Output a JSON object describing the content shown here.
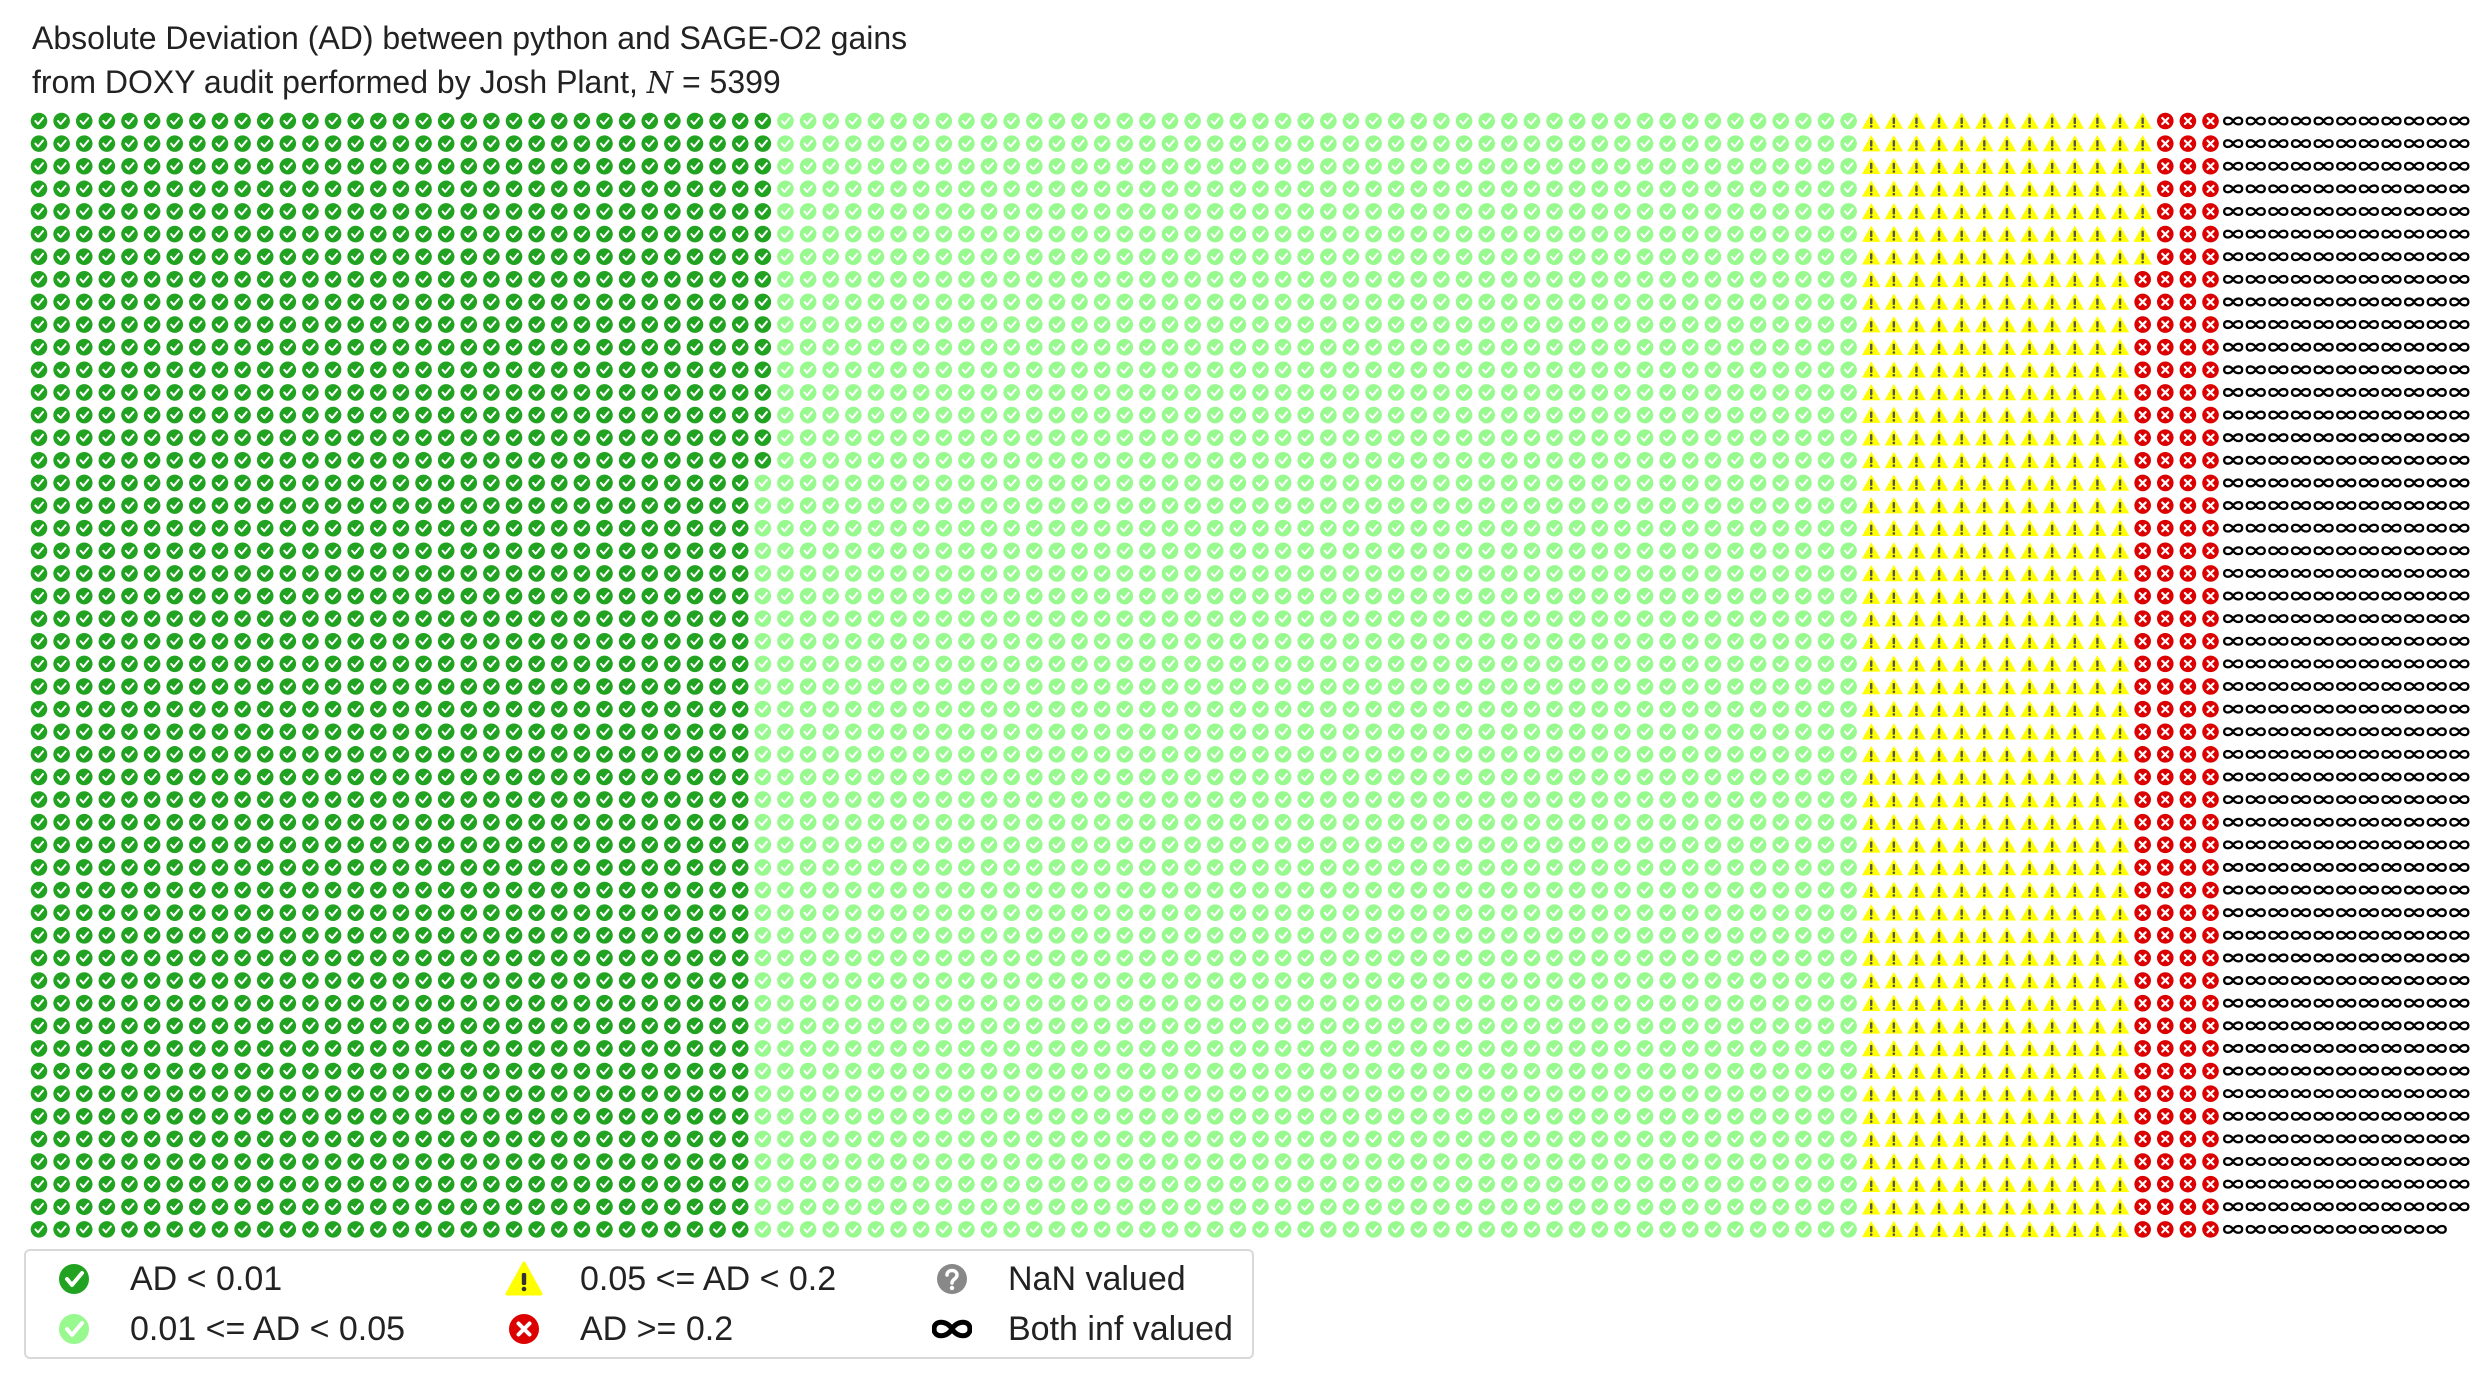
{
  "chart_data": {
    "type": "waffle",
    "title_line1": "Absolute Deviation (AD) between python and SAGE-O2 gains",
    "title_line2_prefix": "from DOXY audit performed by Josh Plant, ",
    "title_line2_var": "N",
    "title_line2_suffix": " = 5399",
    "total": 5399,
    "rows": 50,
    "fill_order": "column-major, top to bottom, left to right",
    "categories": [
      {
        "key": "ad_lt_001",
        "label": "AD < 0.01",
        "count": 1616,
        "color": "#21a321",
        "icon": "check-circle-icon"
      },
      {
        "key": "ad_001_005",
        "label": "0.01 <= AD < 0.05",
        "count": 2434,
        "color": "#98f98f",
        "icon": "check-circle-icon"
      },
      {
        "key": "ad_005_02",
        "label": "0.05 <= AD < 0.2",
        "count": 607,
        "color": "#ffff00",
        "icon": "warning-triangle-icon"
      },
      {
        "key": "ad_ge_02",
        "label": "AD >= 0.2",
        "count": 193,
        "color": "#dd0000",
        "icon": "x-circle-icon"
      },
      {
        "key": "nan",
        "label": "NaN valued",
        "count": 0,
        "color": "#888888",
        "icon": "question-circle-icon"
      },
      {
        "key": "inf",
        "label": "Both inf valued",
        "count": 549,
        "color": "#000000",
        "icon": "infinity-icon"
      }
    ]
  }
}
